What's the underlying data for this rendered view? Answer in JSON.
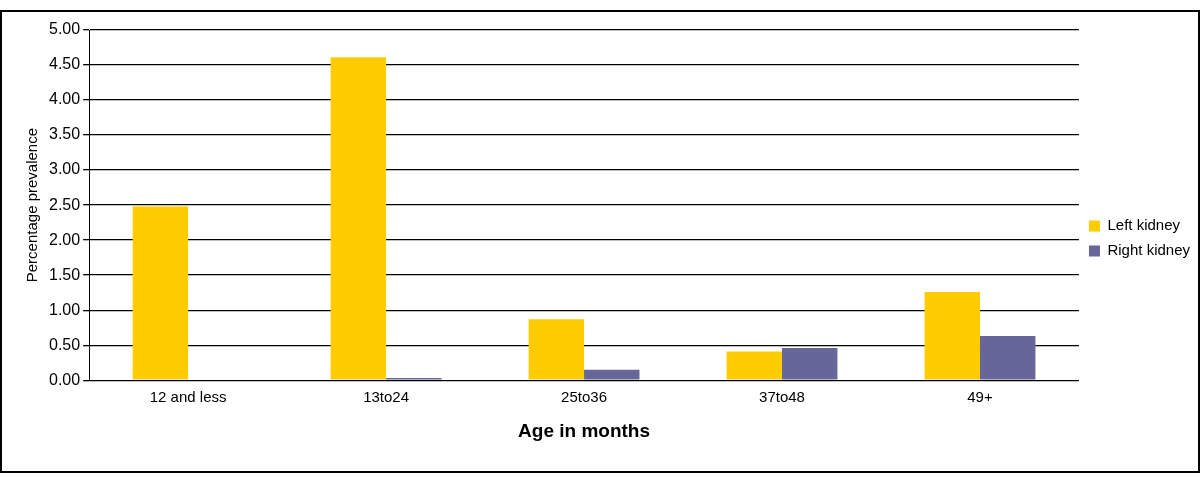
{
  "chart_data": {
    "type": "bar",
    "xlabel": "Age in months",
    "ylabel": "Percentage prevalence",
    "categories": [
      "12 and less",
      "13to24",
      "25to36",
      "37to48",
      "49+"
    ],
    "series": [
      {
        "name": "Left kidney",
        "color": "#ffcc00",
        "values": [
          2.48,
          4.61,
          0.87,
          0.41,
          1.26
        ]
      },
      {
        "name": "Right kidney",
        "color": "#666699",
        "values": [
          0,
          0.03,
          0.15,
          0.46,
          0.63
        ]
      }
    ],
    "ylim": [
      0,
      5
    ],
    "yticks": [
      {
        "value": 0,
        "label": "0.00"
      },
      {
        "value": 0.5,
        "label": "0.50"
      },
      {
        "value": 1,
        "label": "1.00"
      },
      {
        "value": 1.5,
        "label": "1.50"
      },
      {
        "value": 2,
        "label": "2.00"
      },
      {
        "value": 2.5,
        "label": "2.50"
      },
      {
        "value": 3,
        "label": "3.00"
      },
      {
        "value": 3.5,
        "label": "3.50"
      },
      {
        "value": 4,
        "label": "4.00"
      },
      {
        "value": 4.5,
        "label": "4.50"
      },
      {
        "value": 5,
        "label": "5.00"
      }
    ],
    "grid": "y",
    "legend": "right"
  }
}
